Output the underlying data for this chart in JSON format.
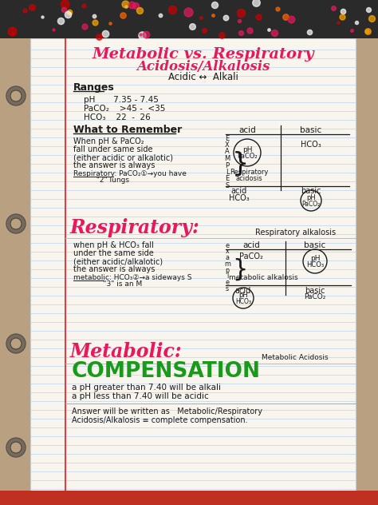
{
  "bg_outer": "#b8a080",
  "bg_page": "#f8f5ee",
  "line_color_h": "#b8d4ef",
  "margin_color": "#e04040",
  "title1": "Metabolic vs. Respiratory",
  "title2": "Acidosis/Alkalosis",
  "title_color": "#e8195a",
  "acidic_line": "Acidic ↔  Alkali",
  "ranges_label": "Ranges",
  "range1": "pH       7.35 - 7.45",
  "range2": "PaCO₂    >45 -  <35",
  "range3": "HCO₃    22  -  26",
  "wtr_label": "What to Remember",
  "wtr1": "When pH & PaCO₂",
  "wtr2": "fall under same side",
  "wtr3": "(either acidic or alkalotic)",
  "wtr4": "the answer is always",
  "wtr5": "Respiratory: PaCO₂①→you have",
  "wtr5b": "          \"2\" lungs",
  "resp_label": "Respiratory:",
  "resp_color": "#e8195a",
  "resp_alkalosis": "Respiratory alkalosis",
  "resp1": "when pH & HCO₃ fall",
  "resp2": "under the same side",
  "resp3": "(either acidic/alkalotic)",
  "resp4": "the answer is always",
  "resp5": "metabolic: HCO₃②→a sideways S",
  "resp5b": "             \"3\" is an M",
  "met_label": "Metabolic:",
  "met_color": "#e8195a",
  "met_acidosis": "Metabolic Acidosis",
  "comp_label": "COMPENSATION",
  "comp_color": "#1a9a1a",
  "comp1": "a pH greater than 7.40 will be alkali",
  "comp2": "a pH less than 7.40 will be acidic",
  "ans1": "Answer will be written as   Metabolic/Respiratory",
  "ans2": "Acidosis/Alkalosis ≡ complete compensation.",
  "text_color": "#1a1a1a",
  "top_decor_color": "#2a2a2a"
}
